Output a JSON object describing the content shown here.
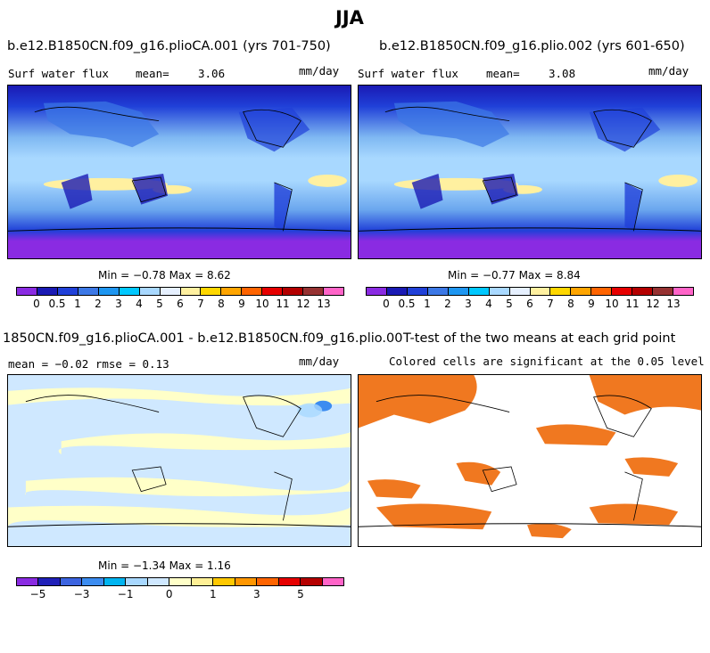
{
  "title": "JJA",
  "panels": {
    "p1": {
      "title": "b.e12.B1850CN.f09_g16.plioCA.001 (yrs 701-750)",
      "field": "Surf water flux",
      "mean_label": "mean=",
      "mean": "3.06",
      "units": "mm/day",
      "minmax": "Min =  −0.78 Max =    8.62"
    },
    "p2": {
      "title": "b.e12.B1850CN.f09_g16.plio.002 (yrs 601-650)",
      "field": "Surf water flux",
      "mean_label": "mean=",
      "mean": "3.08",
      "units": "mm/day",
      "minmax": "Min =  −0.77 Max =    8.84"
    },
    "p3": {
      "title": "1850CN.f09_g16.plioCA.001 - b.e12.B1850CN.f09_g16.plio.002",
      "stats": "mean =  −0.02    rmse =    0.13",
      "units": "mm/day",
      "minmax": "Min =  −1.34 Max =    1.16"
    },
    "p4": {
      "title": "T-test of the two means at each grid point",
      "subtitle": "Colored cells are significant at the 0.05 level",
      "sig_color": "#f07820"
    }
  },
  "colorbar_abs": {
    "colors": [
      "#8a2be2",
      "#1a1ab4",
      "#2040d8",
      "#3c78e6",
      "#1e96f0",
      "#00c8ff",
      "#a8d8ff",
      "#e6f0ff",
      "#fff0a0",
      "#ffd700",
      "#ffa500",
      "#ff6400",
      "#e60000",
      "#b40000",
      "#963232",
      "#ff64c8"
    ],
    "labels": [
      "0",
      "0.5",
      "1",
      "2",
      "3",
      "4",
      "5",
      "6",
      "7",
      "8",
      "9",
      "10",
      "11",
      "12",
      "13"
    ]
  },
  "colorbar_diff": {
    "colors": [
      "#8a2be2",
      "#2020b8",
      "#3c64e0",
      "#3c8cf0",
      "#00b4f0",
      "#a8d8ff",
      "#cfe8ff",
      "#ffffc8",
      "#fff096",
      "#ffc800",
      "#ff9600",
      "#ff6400",
      "#e60000",
      "#b40000",
      "#ff64c8"
    ],
    "labels": [
      "−5",
      "−3",
      "−1",
      "0",
      "1",
      "3",
      "5"
    ]
  }
}
